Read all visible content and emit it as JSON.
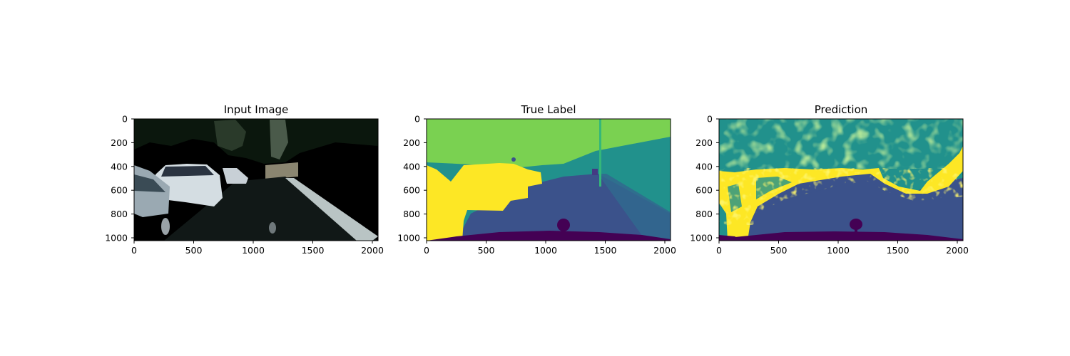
{
  "figure": {
    "panels": [
      {
        "id": "input",
        "title": "Input Image",
        "kind": "photo",
        "x_ticks": [
          "0",
          "500",
          "1000",
          "1500",
          "2000"
        ],
        "y_ticks": [
          "0",
          "200",
          "400",
          "600",
          "800",
          "1000"
        ]
      },
      {
        "id": "true-label",
        "title": "True Label",
        "kind": "segmentation",
        "x_ticks": [
          "0",
          "500",
          "1000",
          "1500",
          "2000"
        ],
        "y_ticks": [
          "0",
          "200",
          "400",
          "600",
          "800",
          "1000"
        ]
      },
      {
        "id": "prediction",
        "title": "Prediction",
        "kind": "segmentation-noisy",
        "x_ticks": [
          "0",
          "500",
          "1000",
          "1500",
          "2000"
        ],
        "y_ticks": [
          "0",
          "200",
          "400",
          "600",
          "800",
          "1000"
        ]
      }
    ],
    "image_extent": {
      "width": 2048,
      "height": 1024
    },
    "x_tick_values": [
      0,
      500,
      1000,
      1500,
      2000
    ],
    "y_tick_values": [
      0,
      200,
      400,
      600,
      800,
      1000
    ],
    "colormap": {
      "name": "viridis",
      "classes": {
        "car": "#fde725",
        "sky": "#7ad151",
        "building": "#21918c",
        "road": "#3b528b",
        "ego_vehicle": "#440154"
      }
    }
  }
}
